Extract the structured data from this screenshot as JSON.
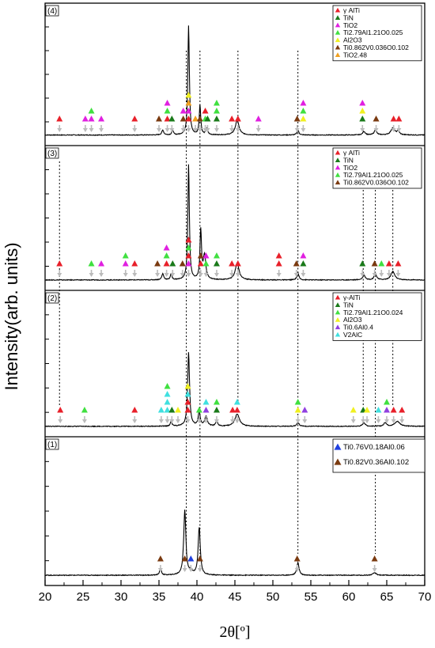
{
  "chart_data": {
    "type": "line",
    "ylabel": "Intensity(arb. units)",
    "xlabel": "2θ[º]",
    "xlim": [
      20,
      70
    ],
    "xticks": [
      "20",
      "25",
      "30",
      "35",
      "40",
      "45",
      "50",
      "55",
      "60",
      "65",
      "70"
    ],
    "panels": [
      {
        "label": "(4)",
        "legend": [
          {
            "text": "γ AlTi",
            "color": "#e8202a",
            "shape": "triangle"
          },
          {
            "text": "TiN",
            "color": "#1a7a1a",
            "shape": "triangle"
          },
          {
            "text": "TiO2",
            "color": "#e020e0",
            "shape": "triangle"
          },
          {
            "text": "Ti2.79Al1.21O0.025",
            "color": "#40e040",
            "shape": "triangle"
          },
          {
            "text": "Al2O3",
            "color": "#f0f020",
            "shape": "triangle"
          },
          {
            "text": "Ti0.862V0.036O0.102",
            "color": "#7a3a10",
            "shape": "triangle"
          },
          {
            "text": "TiO2.48",
            "color": "#f0a020",
            "shape": "triangle"
          }
        ],
        "pattern": {
          "baseline": 0.06,
          "peaks": [
            [
              38.9,
              0.92,
              0.12
            ],
            [
              40.4,
              0.25,
              0.12
            ],
            [
              45.3,
              0.12,
              0.3
            ],
            [
              35.5,
              0.04,
              0.15
            ],
            [
              36.8,
              0.04,
              0.12
            ],
            [
              41.3,
              0.05,
              0.15
            ],
            [
              53.3,
              0.04,
              0.15
            ],
            [
              62.0,
              0.03,
              0.2
            ],
            [
              63.5,
              0.04,
              0.2
            ],
            [
              65.8,
              0.06,
              0.3
            ],
            [
              66.5,
              0.03,
              0.2
            ]
          ]
        },
        "markers": [
          {
            "x": 21.9,
            "stack": [
              "#e8202a"
            ]
          },
          {
            "x": 25.3,
            "stack": [
              "#e020e0"
            ]
          },
          {
            "x": 26.1,
            "stack": [
              "#40e040",
              "#e020e0"
            ]
          },
          {
            "x": 27.4,
            "stack": [
              "#e020e0"
            ]
          },
          {
            "x": 31.8,
            "stack": [
              "#e8202a"
            ]
          },
          {
            "x": 35.0,
            "stack": [
              "#7a3a10"
            ]
          },
          {
            "x": 36.1,
            "stack": [
              "#e020e0",
              "#40e040",
              "#e8202a"
            ]
          },
          {
            "x": 36.7,
            "stack": [
              "#1a7a1a"
            ]
          },
          {
            "x": 38.2,
            "stack": [
              "#e020e0",
              "#7a3a10"
            ]
          },
          {
            "x": 38.9,
            "stack": [
              "#f0f020",
              "#f0a020",
              "#e020e0",
              "#e8202a"
            ]
          },
          {
            "x": 39.8,
            "stack": [
              "#f0a020"
            ]
          },
          {
            "x": 40.4,
            "stack": [
              "#7a3a10"
            ]
          },
          {
            "x": 41.1,
            "stack": [
              "#e8202a",
              "#40e040"
            ]
          },
          {
            "x": 41.4,
            "stack": [
              "#1a7a1a"
            ]
          },
          {
            "x": 42.6,
            "stack": [
              "#40e040",
              "#40e040",
              "#1a7a1a"
            ]
          },
          {
            "x": 44.6,
            "stack": [
              "#e8202a"
            ]
          },
          {
            "x": 45.4,
            "stack": [
              "#e8202a"
            ]
          },
          {
            "x": 48.1,
            "stack": [
              "#e020e0"
            ]
          },
          {
            "x": 53.2,
            "stack": [
              "#7a3a10"
            ]
          },
          {
            "x": 54.0,
            "stack": [
              "#e020e0",
              "#40e040",
              "#f0f020"
            ]
          },
          {
            "x": 61.8,
            "stack": [
              "#e020e0",
              "#f0f020",
              "#1a7a1a"
            ]
          },
          {
            "x": 63.6,
            "stack": [
              "#7a3a10"
            ]
          },
          {
            "x": 65.9,
            "stack": [
              "#e8202a"
            ]
          },
          {
            "x": 66.6,
            "stack": [
              "#e8202a"
            ]
          }
        ]
      },
      {
        "label": "(3)",
        "legend": [
          {
            "text": "γ AlTi",
            "color": "#e8202a",
            "shape": "triangle"
          },
          {
            "text": "TiN",
            "color": "#1a7a1a",
            "shape": "triangle"
          },
          {
            "text": "TiO2",
            "color": "#e020e0",
            "shape": "triangle"
          },
          {
            "text": "Ti2.79Al1.21O0.025",
            "color": "#40e040",
            "shape": "triangle"
          },
          {
            "text": "Ti0.862V0.036O0.102",
            "color": "#7a3a10",
            "shape": "triangle"
          }
        ],
        "pattern": {
          "baseline": 0.05,
          "peaks": [
            [
              38.9,
              0.95,
              0.12
            ],
            [
              40.5,
              0.4,
              0.12
            ],
            [
              41.0,
              0.2,
              0.2
            ],
            [
              45.3,
              0.14,
              0.3
            ],
            [
              35.5,
              0.05,
              0.15
            ],
            [
              36.6,
              0.05,
              0.12
            ],
            [
              53.3,
              0.06,
              0.15
            ],
            [
              62.0,
              0.04,
              0.2
            ],
            [
              63.5,
              0.05,
              0.2
            ],
            [
              65.8,
              0.07,
              0.3
            ]
          ]
        },
        "markers": [
          {
            "x": 21.9,
            "stack": [
              "#e8202a"
            ]
          },
          {
            "x": 26.1,
            "stack": [
              "#40e040"
            ]
          },
          {
            "x": 27.4,
            "stack": [
              "#e020e0"
            ]
          },
          {
            "x": 30.6,
            "stack": [
              "#40e040",
              "#e020e0"
            ]
          },
          {
            "x": 31.8,
            "stack": [
              "#e8202a"
            ]
          },
          {
            "x": 34.8,
            "stack": [
              "#7a3a10"
            ]
          },
          {
            "x": 36.0,
            "stack": [
              "#e020e0",
              "#40e040",
              "#e8202a"
            ]
          },
          {
            "x": 36.8,
            "stack": [
              "#1a7a1a"
            ]
          },
          {
            "x": 38.1,
            "stack": [
              "#7a3a10"
            ]
          },
          {
            "x": 38.9,
            "stack": [
              "#e8202a",
              "#40e040",
              "#e8202a",
              "#e020e0"
            ]
          },
          {
            "x": 40.5,
            "stack": [
              "#7a3a10",
              "#e8202a"
            ]
          },
          {
            "x": 41.2,
            "stack": [
              "#e020e0",
              "#40e040"
            ]
          },
          {
            "x": 42.6,
            "stack": [
              "#40e040",
              "#1a7a1a"
            ]
          },
          {
            "x": 44.6,
            "stack": [
              "#e8202a"
            ]
          },
          {
            "x": 45.4,
            "stack": [
              "#e8202a"
            ]
          },
          {
            "x": 50.8,
            "stack": [
              "#e8202a",
              "#e8202a"
            ]
          },
          {
            "x": 53.1,
            "stack": [
              "#7a3a10"
            ]
          },
          {
            "x": 54.0,
            "stack": [
              "#e020e0",
              "#1a7a1a"
            ]
          },
          {
            "x": 61.8,
            "stack": [
              "#1a7a1a"
            ]
          },
          {
            "x": 63.4,
            "stack": [
              "#7a3a10"
            ]
          },
          {
            "x": 64.3,
            "stack": [
              "#40e040"
            ]
          },
          {
            "x": 65.3,
            "stack": [
              "#e8202a"
            ]
          },
          {
            "x": 66.5,
            "stack": [
              "#e8202a"
            ]
          }
        ]
      },
      {
        "label": "(2)",
        "legend": [
          {
            "text": "γ-AlTi",
            "color": "#e8202a",
            "shape": "triangle"
          },
          {
            "text": "TiN",
            "color": "#1a7a1a",
            "shape": "triangle"
          },
          {
            "text": "Ti2.79Al1.21O0.024",
            "color": "#40e040",
            "shape": "triangle"
          },
          {
            "text": "Al2O3",
            "color": "#f0f020",
            "shape": "triangle"
          },
          {
            "text": "Ti0.6Al0.4",
            "color": "#9040e0",
            "shape": "triangle"
          },
          {
            "text": "V2AlC",
            "color": "#40e0e0",
            "shape": "triangle"
          }
        ],
        "pattern": {
          "baseline": 0.05,
          "peaks": [
            [
              38.9,
              0.6,
              0.15
            ],
            [
              40.3,
              0.12,
              0.15
            ],
            [
              41.2,
              0.08,
              0.2
            ],
            [
              45.3,
              0.1,
              0.35
            ],
            [
              36.6,
              0.04,
              0.12
            ],
            [
              42.6,
              0.04,
              0.15
            ],
            [
              53.3,
              0.03,
              0.2
            ],
            [
              62.0,
              0.03,
              0.2
            ],
            [
              64.8,
              0.03,
              0.2
            ],
            [
              66.4,
              0.04,
              0.4
            ]
          ]
        },
        "markers": [
          {
            "x": 22.0,
            "stack": [
              "#e8202a"
            ]
          },
          {
            "x": 25.2,
            "stack": [
              "#40e040"
            ]
          },
          {
            "x": 31.8,
            "stack": [
              "#e8202a"
            ]
          },
          {
            "x": 35.3,
            "stack": [
              "#40e0e0"
            ]
          },
          {
            "x": 36.1,
            "stack": [
              "#40e040",
              "#40e0e0",
              "#40e0e0",
              "#40e0e0"
            ]
          },
          {
            "x": 36.7,
            "stack": [
              "#1a7a1a"
            ]
          },
          {
            "x": 37.5,
            "stack": [
              "#f0f020"
            ]
          },
          {
            "x": 38.8,
            "stack": [
              "#f0f020",
              "#40e0e0",
              "#e8202a",
              "#e8202a"
            ]
          },
          {
            "x": 40.3,
            "stack": [
              "#40e040"
            ]
          },
          {
            "x": 41.2,
            "stack": [
              "#40e0e0",
              "#9040e0"
            ]
          },
          {
            "x": 42.6,
            "stack": [
              "#40e040",
              "#1a7a1a"
            ]
          },
          {
            "x": 44.7,
            "stack": [
              "#e8202a"
            ]
          },
          {
            "x": 45.3,
            "stack": [
              "#40e0e0",
              "#e8202a"
            ]
          },
          {
            "x": 53.3,
            "stack": [
              "#40e040",
              "#f0f020"
            ]
          },
          {
            "x": 54.2,
            "stack": [
              "#9040e0"
            ]
          },
          {
            "x": 60.6,
            "stack": [
              "#f0f020"
            ]
          },
          {
            "x": 61.9,
            "stack": [
              "#1a7a1a"
            ]
          },
          {
            "x": 62.4,
            "stack": [
              "#f0f020"
            ]
          },
          {
            "x": 63.9,
            "stack": [
              "#40e0e0"
            ]
          },
          {
            "x": 65.0,
            "stack": [
              "#40e040",
              "#9040e0"
            ]
          },
          {
            "x": 65.9,
            "stack": [
              "#e8202a"
            ]
          },
          {
            "x": 67.0,
            "stack": [
              "#e8202a"
            ]
          }
        ]
      },
      {
        "label": "(1)",
        "legend": [
          {
            "text": "Ti0.76V0.18Al0.06",
            "color": "#2040e0",
            "shape": "triangle"
          },
          {
            "text": "Ti0.82V0.36Al0.102",
            "color": "#7a3a10",
            "shape": "triangle"
          }
        ],
        "pattern": {
          "baseline": 0.04,
          "peaks": [
            [
              38.4,
              0.52,
              0.17
            ],
            [
              40.3,
              0.38,
              0.17
            ],
            [
              35.2,
              0.05,
              0.15
            ],
            [
              39.2,
              0.03,
              0.2
            ],
            [
              53.3,
              0.1,
              0.18
            ],
            [
              63.4,
              0.02,
              0.25
            ]
          ]
        },
        "markers": [
          {
            "x": 35.2,
            "stack": [
              "#7a3a10"
            ]
          },
          {
            "x": 38.4,
            "stack": [
              "#7a3a10"
            ]
          },
          {
            "x": 39.2,
            "stack": [
              "#2040e0"
            ]
          },
          {
            "x": 40.4,
            "stack": [
              "#7a3a10"
            ]
          },
          {
            "x": 53.2,
            "stack": [
              "#7a3a10"
            ]
          },
          {
            "x": 63.4,
            "stack": [
              "#7a3a10"
            ]
          }
        ]
      }
    ],
    "dotted_lines": [
      {
        "x": 21.9,
        "from_panel": 1,
        "to_panel": 2
      },
      {
        "x": 38.6,
        "from_panel": 0,
        "to_panel": 3
      },
      {
        "x": 40.4,
        "from_panel": 0,
        "to_panel": 3
      },
      {
        "x": 45.4,
        "from_panel": 0,
        "to_panel": 2
      },
      {
        "x": 53.3,
        "from_panel": 0,
        "to_panel": 3
      },
      {
        "x": 61.9,
        "from_panel": 1,
        "to_panel": 2
      },
      {
        "x": 63.5,
        "from_panel": 1,
        "to_panel": 3
      },
      {
        "x": 65.8,
        "from_panel": 1,
        "to_panel": 2
      }
    ]
  }
}
